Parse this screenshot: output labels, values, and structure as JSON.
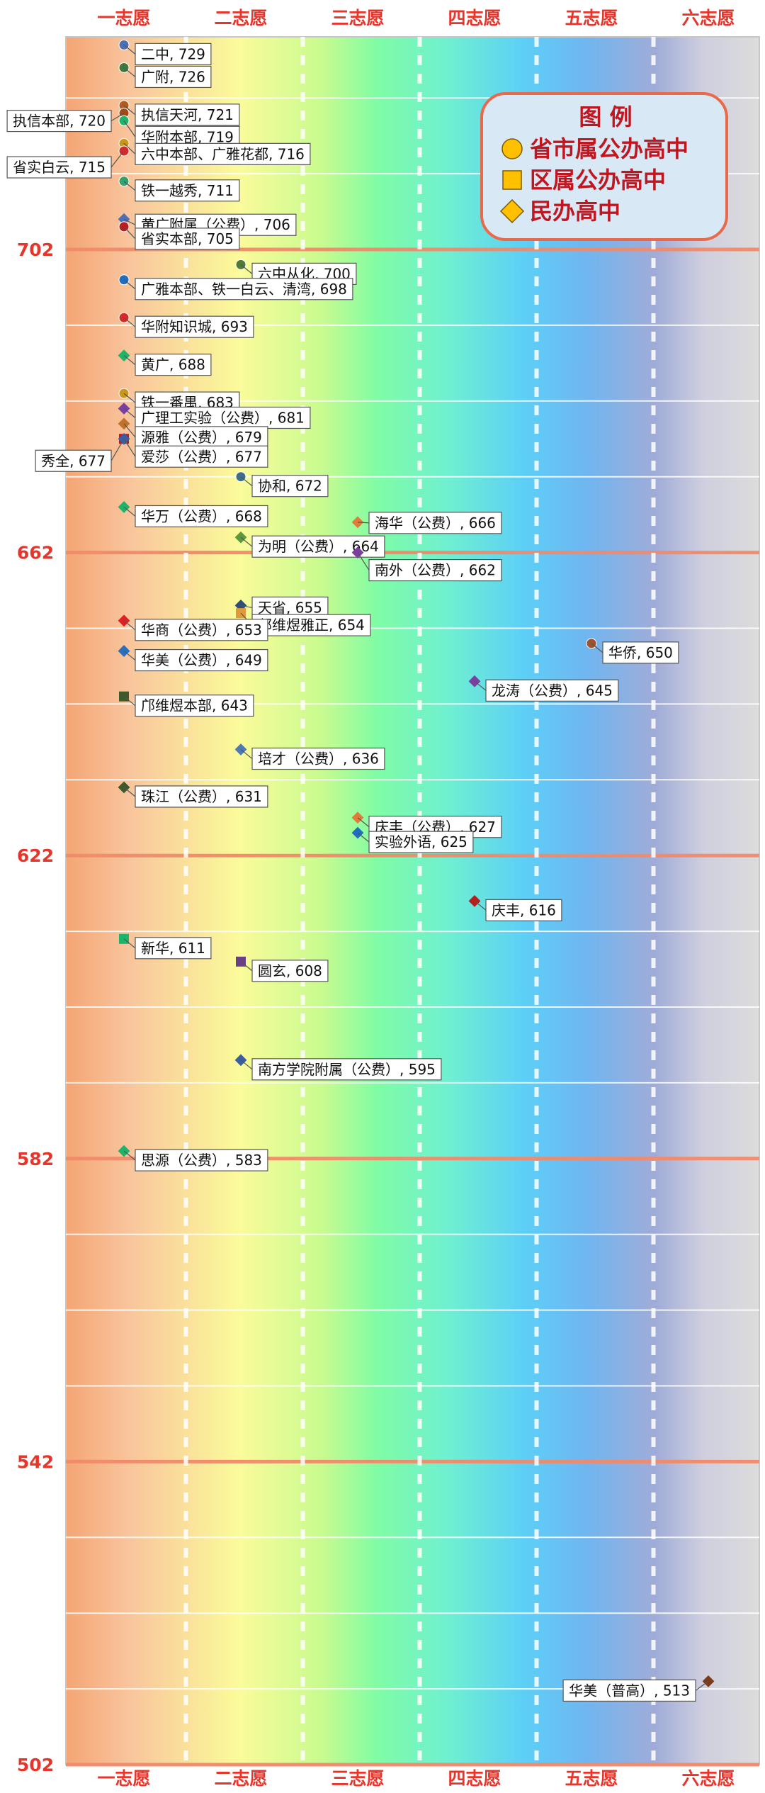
{
  "chart_data": {
    "type": "scatter",
    "title": "",
    "xlabel": "",
    "ylabel": "",
    "categories": [
      "一志愿",
      "二志愿",
      "三志愿",
      "四志愿",
      "五志愿",
      "六志愿"
    ],
    "ylim": [
      502,
      745
    ],
    "yticks": [
      502,
      542,
      582,
      622,
      662,
      702
    ],
    "legend": {
      "title": "图 例",
      "position": "top-right",
      "items": [
        {
          "label": "省市属公办高中",
          "shape": "circle",
          "color": "#ffc000"
        },
        {
          "label": "区属公办高中",
          "shape": "square",
          "color": "#ffc000"
        },
        {
          "label": "民办高中",
          "shape": "diamond",
          "color": "#ffc000"
        }
      ]
    },
    "points": [
      {
        "label": "二中, 729",
        "x": "一志愿",
        "y": 729,
        "shape": "circle",
        "color": "#4e6fb5",
        "side": "right"
      },
      {
        "label": "广附, 726",
        "x": "一志愿",
        "y": 726,
        "shape": "circle",
        "color": "#3f7a3a",
        "side": "right"
      },
      {
        "label": "执信天河, 721",
        "x": "一志愿",
        "y": 721,
        "shape": "circle",
        "color": "#b05a1e",
        "side": "right"
      },
      {
        "label": "执信本部, 720",
        "x": "一志愿",
        "y": 720,
        "shape": "circle",
        "color": "#a14a1a",
        "side": "left"
      },
      {
        "label": "华附本部, 719",
        "x": "一志愿",
        "y": 719,
        "shape": "circle",
        "color": "#1db46a",
        "side": "right"
      },
      {
        "label": "六中本部、广雅花都, 716",
        "x": "一志愿",
        "y": 716,
        "shape": "circle",
        "color": "#c9961a",
        "side": "right"
      },
      {
        "label": "省实白云, 715",
        "x": "一志愿",
        "y": 715,
        "shape": "circle",
        "color": "#d62828",
        "side": "left"
      },
      {
        "label": "铁一越秀, 711",
        "x": "一志愿",
        "y": 711,
        "shape": "circle",
        "color": "#2fa36b",
        "side": "right"
      },
      {
        "label": "黄广附属（公费）, 706",
        "x": "一志愿",
        "y": 706,
        "shape": "diamond",
        "color": "#4e6fb5",
        "side": "right"
      },
      {
        "label": "省实本部, 705",
        "x": "一志愿",
        "y": 705,
        "shape": "circle",
        "color": "#b91c1c",
        "side": "right"
      },
      {
        "label": "六中从化, 700",
        "x": "二志愿",
        "y": 700,
        "shape": "circle",
        "color": "#4f7a3a",
        "side": "right"
      },
      {
        "label": "广雅本部、铁一白云、清湾, 698",
        "x": "一志愿",
        "y": 698,
        "shape": "circle",
        "color": "#1f6fbd",
        "side": "right"
      },
      {
        "label": "华附知识城, 693",
        "x": "一志愿",
        "y": 693,
        "shape": "circle",
        "color": "#d62828",
        "side": "right"
      },
      {
        "label": "黄广, 688",
        "x": "一志愿",
        "y": 688,
        "shape": "diamond",
        "color": "#1db46a",
        "side": "right"
      },
      {
        "label": "铁一番禺, 683",
        "x": "一志愿",
        "y": 683,
        "shape": "circle",
        "color": "#c9961a",
        "side": "right"
      },
      {
        "label": "广理工实验（公费）, 681",
        "x": "一志愿",
        "y": 681,
        "shape": "diamond",
        "color": "#7a3fa0",
        "side": "right"
      },
      {
        "label": "源雅（公费）, 679",
        "x": "一志愿",
        "y": 679,
        "shape": "diamond",
        "color": "#c0722a",
        "side": "right"
      },
      {
        "label": "秀全, 677",
        "x": "一志愿",
        "y": 677,
        "shape": "square",
        "color": "#b91c1c",
        "side": "left"
      },
      {
        "label": "爱莎（公费）, 677",
        "x": "一志愿",
        "y": 677,
        "shape": "diamond",
        "color": "#3a5fa0",
        "side": "right"
      },
      {
        "label": "协和, 672",
        "x": "二志愿",
        "y": 672,
        "shape": "circle",
        "color": "#3d6e8a",
        "side": "right"
      },
      {
        "label": "华万（公费）, 668",
        "x": "一志愿",
        "y": 668,
        "shape": "diamond",
        "color": "#1db46a",
        "side": "right"
      },
      {
        "label": "海华（公费）, 666",
        "x": "三志愿",
        "y": 666,
        "shape": "diamond",
        "color": "#e07b39",
        "side": "right"
      },
      {
        "label": "为明（公费）, 664",
        "x": "二志愿",
        "y": 664,
        "shape": "diamond",
        "color": "#5a9a3a",
        "side": "right"
      },
      {
        "label": "南外（公费）, 662",
        "x": "三志愿",
        "y": 662,
        "shape": "diamond",
        "color": "#7a3fa0",
        "side": "right"
      },
      {
        "label": "天省, 655",
        "x": "二志愿",
        "y": 655,
        "shape": "diamond",
        "color": "#2a4f7a",
        "side": "right"
      },
      {
        "label": "邝维煜雅正, 654",
        "x": "二志愿",
        "y": 654,
        "shape": "square",
        "color": "#e09a3a",
        "side": "right"
      },
      {
        "label": "华商（公费）, 653",
        "x": "一志愿",
        "y": 653,
        "shape": "diamond",
        "color": "#e02020",
        "side": "right"
      },
      {
        "label": "华侨, 650",
        "x": "五志愿",
        "y": 650,
        "shape": "circle",
        "color": "#a0522d",
        "side": "right"
      },
      {
        "label": "华美（公费）, 649",
        "x": "一志愿",
        "y": 649,
        "shape": "diamond",
        "color": "#2a6fbd",
        "side": "right"
      },
      {
        "label": "龙涛（公费）, 645",
        "x": "四志愿",
        "y": 645,
        "shape": "diamond",
        "color": "#7a3fa0",
        "side": "right"
      },
      {
        "label": "邝维煜本部, 643",
        "x": "一志愿",
        "y": 643,
        "shape": "square",
        "color": "#3e5a2a",
        "side": "right"
      },
      {
        "label": "培才（公费）, 636",
        "x": "二志愿",
        "y": 636,
        "shape": "diamond",
        "color": "#4e7ab5",
        "side": "right"
      },
      {
        "label": "珠江（公费）, 631",
        "x": "一志愿",
        "y": 631,
        "shape": "diamond",
        "color": "#3e5a2a",
        "side": "right"
      },
      {
        "label": "庆丰（公费）, 627",
        "x": "三志愿",
        "y": 627,
        "shape": "diamond",
        "color": "#e07b39",
        "side": "right"
      },
      {
        "label": "实验外语, 625",
        "x": "三志愿",
        "y": 625,
        "shape": "diamond",
        "color": "#1f6fbd",
        "side": "right"
      },
      {
        "label": "庆丰, 616",
        "x": "四志愿",
        "y": 616,
        "shape": "diamond",
        "color": "#b91c1c",
        "side": "right"
      },
      {
        "label": "新华, 611",
        "x": "一志愿",
        "y": 611,
        "shape": "square",
        "color": "#1db46a",
        "side": "right"
      },
      {
        "label": "圆玄, 608",
        "x": "二志愿",
        "y": 608,
        "shape": "square",
        "color": "#6a3f8a",
        "side": "right"
      },
      {
        "label": "南方学院附属（公费）, 595",
        "x": "二志愿",
        "y": 595,
        "shape": "diamond",
        "color": "#3a5fa0",
        "side": "right"
      },
      {
        "label": "思源（公费）, 583",
        "x": "一志愿",
        "y": 583,
        "shape": "diamond",
        "color": "#1db46a",
        "side": "right"
      },
      {
        "label": "华美（普高）, 513",
        "x": "六志愿",
        "y": 513,
        "shape": "diamond",
        "color": "#7a3b1a",
        "side": "left"
      }
    ]
  }
}
